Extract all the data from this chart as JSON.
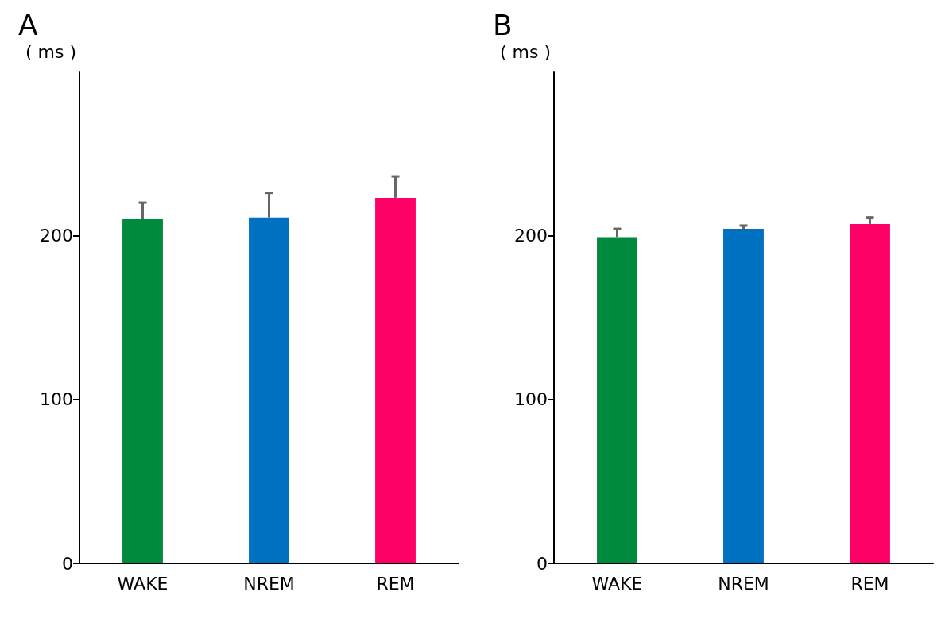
{
  "chart_data": [
    {
      "type": "bar",
      "title": "A",
      "ylabel": "( ms )",
      "categories": [
        "WAKE",
        "NREM",
        "REM"
      ],
      "values": [
        210,
        211,
        223
      ],
      "colors": [
        "#008a3e",
        "#0070c0",
        "#ff0066"
      ],
      "errors": [
        [
          210,
          220
        ],
        [
          211,
          226
        ],
        [
          223,
          236
        ]
      ],
      "ylim": [
        0,
        300
      ],
      "yticks": [
        0,
        100,
        200
      ],
      "grid": false
    },
    {
      "type": "bar",
      "title": "B",
      "ylabel": "( ms )",
      "categories": [
        "WAKE",
        "NREM",
        "REM"
      ],
      "values": [
        199,
        204,
        207
      ],
      "colors": [
        "#008a3e",
        "#0070c0",
        "#ff0066"
      ],
      "errors": [
        [
          199,
          204
        ],
        [
          204,
          206
        ],
        [
          207,
          211
        ]
      ],
      "ylim": [
        0,
        300
      ],
      "yticks": [
        0,
        100,
        200
      ],
      "grid": false
    }
  ]
}
